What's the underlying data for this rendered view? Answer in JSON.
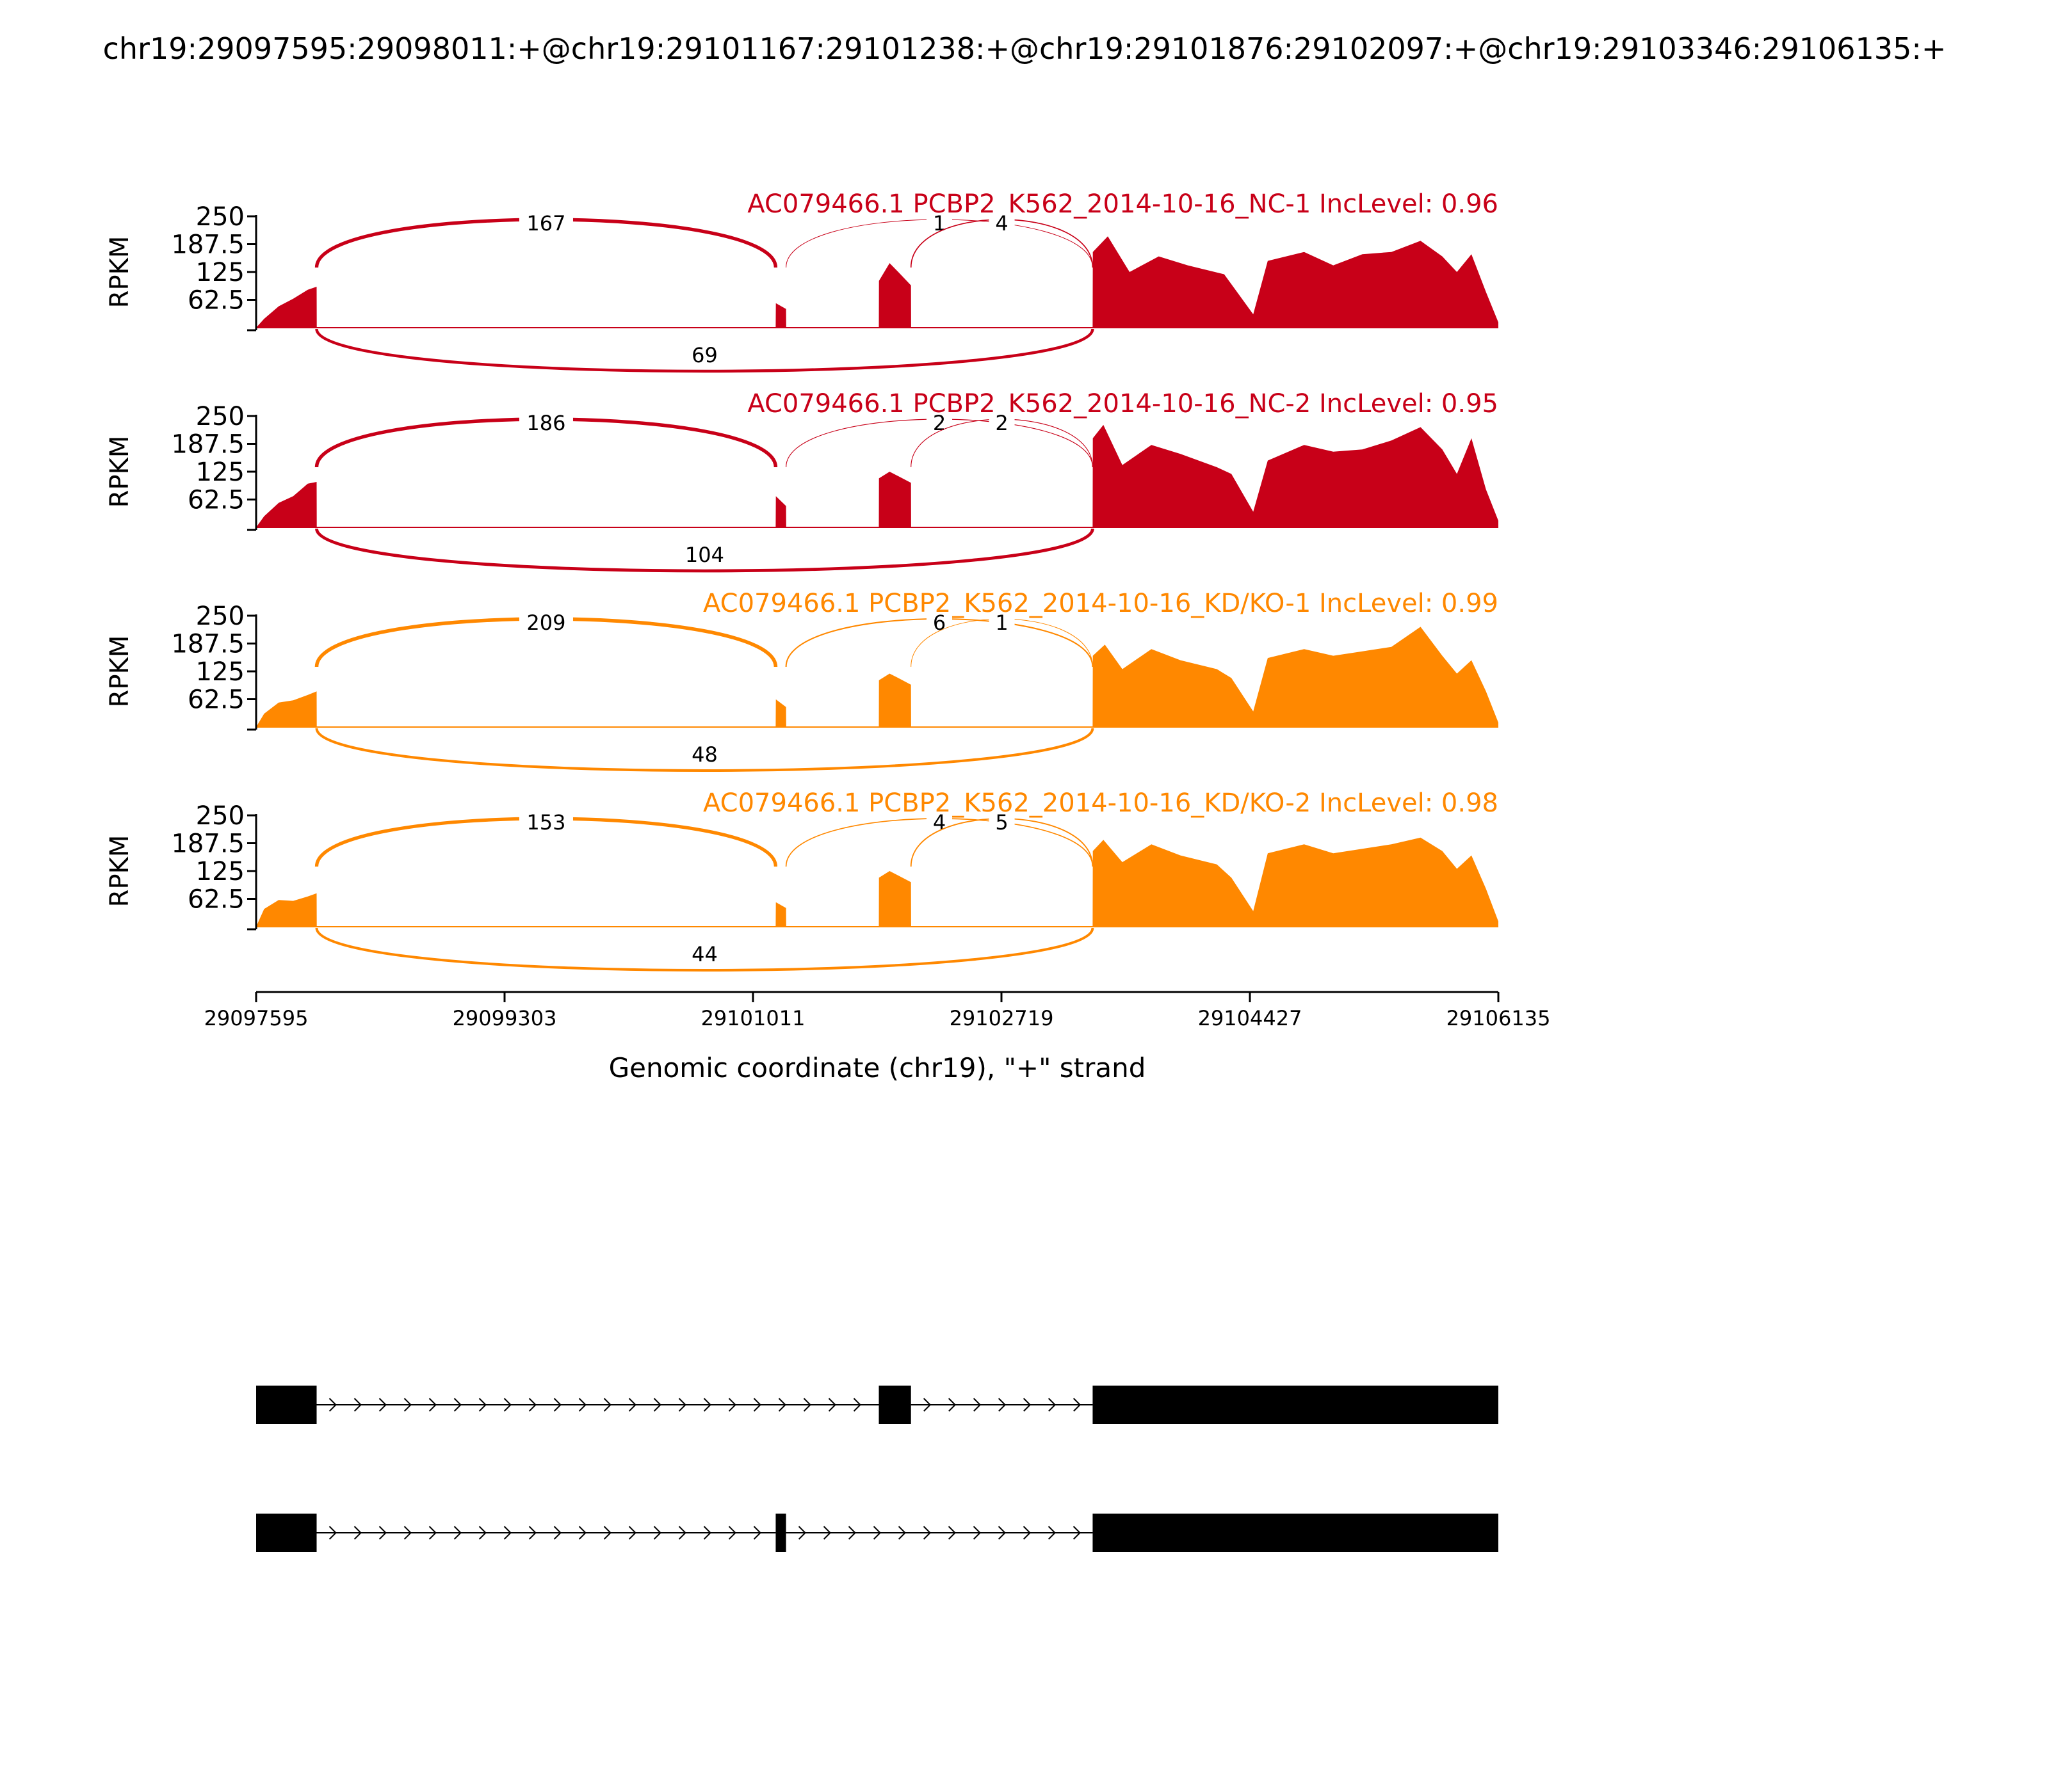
{
  "chart_data": {
    "type": "sashimi",
    "title": "chr19:29097595:29098011:+@chr19:29101167:29101238:+@chr19:29101876:29102097:+@chr19:29103346:29106135:+",
    "xlabel": "Genomic coordinate (chr19), \"+\" strand",
    "ylabel": "RPKM",
    "xlim": [
      29097595,
      29106135
    ],
    "xticks": [
      29097595,
      29099303,
      29101011,
      29102719,
      29104427,
      29106135
    ],
    "xtick_labels": [
      "29097595",
      "29099303",
      "29101011",
      "29102719",
      "29104427",
      "29106135"
    ],
    "ylim": [
      0,
      250
    ],
    "yticks": [
      62.5,
      125,
      187.5,
      250
    ],
    "ytick_labels": [
      "62.5",
      "125",
      "187.5",
      "250"
    ],
    "exons": [
      {
        "start": 29097595,
        "end": 29098011
      },
      {
        "start": 29101167,
        "end": 29101238
      },
      {
        "start": 29101876,
        "end": 29102097
      },
      {
        "start": 29103346,
        "end": 29106135
      }
    ],
    "tracks": [
      {
        "label": "AC079466.1 PCBP2_K562_2014-10-16_NC-1 IncLevel: 0.96",
        "color": "#c80018",
        "coverage": [
          [
            29097595,
            0
          ],
          [
            29097650,
            20
          ],
          [
            29097750,
            48
          ],
          [
            29097850,
            65
          ],
          [
            29097950,
            85
          ],
          [
            29098011,
            92
          ],
          [
            29098012,
            0
          ],
          [
            29101167,
            0
          ],
          [
            29101168,
            55
          ],
          [
            29101238,
            42
          ],
          [
            29101239,
            0
          ],
          [
            29101876,
            0
          ],
          [
            29101877,
            105
          ],
          [
            29101950,
            145
          ],
          [
            29102010,
            125
          ],
          [
            29102097,
            95
          ],
          [
            29102098,
            0
          ],
          [
            29103346,
            0
          ],
          [
            29103347,
            170
          ],
          [
            29103450,
            205
          ],
          [
            29103600,
            125
          ],
          [
            29103800,
            160
          ],
          [
            29104000,
            140
          ],
          [
            29104250,
            120
          ],
          [
            29104350,
            75
          ],
          [
            29104450,
            30
          ],
          [
            29104550,
            150
          ],
          [
            29104800,
            170
          ],
          [
            29105000,
            140
          ],
          [
            29105200,
            165
          ],
          [
            29105400,
            170
          ],
          [
            29105600,
            195
          ],
          [
            29105750,
            160
          ],
          [
            29105850,
            125
          ],
          [
            29105950,
            165
          ],
          [
            29106050,
            80
          ],
          [
            29106135,
            12
          ]
        ],
        "junctions": [
          {
            "start": 29098011,
            "end": 29101167,
            "count": 167,
            "label": "167",
            "side": "top"
          },
          {
            "start": 29101238,
            "end": 29103346,
            "count": 1,
            "label": "1",
            "side": "top"
          },
          {
            "start": 29102097,
            "end": 29103346,
            "count": 4,
            "label": "4",
            "side": "top"
          },
          {
            "start": 29098011,
            "end": 29103346,
            "count": 69,
            "label": "69",
            "side": "bottom"
          }
        ]
      },
      {
        "label": "AC079466.1 PCBP2_K562_2014-10-16_NC-2 IncLevel: 0.95",
        "color": "#c80018",
        "coverage": [
          [
            29097595,
            0
          ],
          [
            29097650,
            25
          ],
          [
            29097750,
            55
          ],
          [
            29097850,
            70
          ],
          [
            29097950,
            98
          ],
          [
            29098011,
            102
          ],
          [
            29098012,
            0
          ],
          [
            29101167,
            0
          ],
          [
            29101168,
            70
          ],
          [
            29101238,
            48
          ],
          [
            29101239,
            0
          ],
          [
            29101876,
            0
          ],
          [
            29101877,
            110
          ],
          [
            29101950,
            125
          ],
          [
            29102010,
            115
          ],
          [
            29102097,
            100
          ],
          [
            29102098,
            0
          ],
          [
            29103346,
            0
          ],
          [
            29103347,
            200
          ],
          [
            29103420,
            230
          ],
          [
            29103550,
            140
          ],
          [
            29103750,
            185
          ],
          [
            29103950,
            165
          ],
          [
            29104200,
            135
          ],
          [
            29104300,
            120
          ],
          [
            29104450,
            35
          ],
          [
            29104550,
            150
          ],
          [
            29104800,
            185
          ],
          [
            29105000,
            170
          ],
          [
            29105200,
            175
          ],
          [
            29105400,
            195
          ],
          [
            29105600,
            225
          ],
          [
            29105750,
            175
          ],
          [
            29105850,
            120
          ],
          [
            29105950,
            200
          ],
          [
            29106050,
            85
          ],
          [
            29106135,
            15
          ]
        ],
        "junctions": [
          {
            "start": 29098011,
            "end": 29101167,
            "count": 186,
            "label": "186",
            "side": "top"
          },
          {
            "start": 29101238,
            "end": 29103346,
            "count": 2,
            "label": "2",
            "side": "top"
          },
          {
            "start": 29102097,
            "end": 29103346,
            "count": 2,
            "label": "2",
            "side": "top"
          },
          {
            "start": 29098011,
            "end": 29103346,
            "count": 104,
            "label": "104",
            "side": "bottom"
          }
        ]
      },
      {
        "label": "AC079466.1 PCBP2_K562_2014-10-16_KD/KO-1 IncLevel: 0.99",
        "color": "#ff8800",
        "coverage": [
          [
            29097595,
            0
          ],
          [
            29097650,
            30
          ],
          [
            29097750,
            55
          ],
          [
            29097850,
            60
          ],
          [
            29097950,
            72
          ],
          [
            29098011,
            80
          ],
          [
            29098012,
            0
          ],
          [
            29101167,
            0
          ],
          [
            29101168,
            62
          ],
          [
            29101238,
            45
          ],
          [
            29101239,
            0
          ],
          [
            29101876,
            0
          ],
          [
            29101877,
            105
          ],
          [
            29101950,
            120
          ],
          [
            29102010,
            110
          ],
          [
            29102097,
            95
          ],
          [
            29102098,
            0
          ],
          [
            29103346,
            0
          ],
          [
            29103347,
            160
          ],
          [
            29103430,
            185
          ],
          [
            29103550,
            130
          ],
          [
            29103750,
            175
          ],
          [
            29103950,
            150
          ],
          [
            29104200,
            130
          ],
          [
            29104300,
            110
          ],
          [
            29104450,
            35
          ],
          [
            29104550,
            155
          ],
          [
            29104800,
            175
          ],
          [
            29105000,
            160
          ],
          [
            29105200,
            170
          ],
          [
            29105400,
            180
          ],
          [
            29105600,
            225
          ],
          [
            29105750,
            160
          ],
          [
            29105850,
            120
          ],
          [
            29105950,
            150
          ],
          [
            29106050,
            80
          ],
          [
            29106135,
            10
          ]
        ],
        "junctions": [
          {
            "start": 29098011,
            "end": 29101167,
            "count": 209,
            "label": "209",
            "side": "top"
          },
          {
            "start": 29101238,
            "end": 29103346,
            "count": 6,
            "label": "6",
            "side": "top"
          },
          {
            "start": 29102097,
            "end": 29103346,
            "count": 1,
            "label": "1",
            "side": "top"
          },
          {
            "start": 29098011,
            "end": 29103346,
            "count": 48,
            "label": "48",
            "side": "bottom"
          }
        ]
      },
      {
        "label": "AC079466.1 PCBP2_K562_2014-10-16_KD/KO-2 IncLevel: 0.98",
        "color": "#ff8800",
        "coverage": [
          [
            29097595,
            0
          ],
          [
            29097650,
            40
          ],
          [
            29097750,
            60
          ],
          [
            29097850,
            58
          ],
          [
            29097950,
            68
          ],
          [
            29098011,
            75
          ],
          [
            29098012,
            0
          ],
          [
            29101167,
            0
          ],
          [
            29101168,
            55
          ],
          [
            29101238,
            42
          ],
          [
            29101239,
            0
          ],
          [
            29101876,
            0
          ],
          [
            29101877,
            110
          ],
          [
            29101950,
            125
          ],
          [
            29102010,
            115
          ],
          [
            29102097,
            100
          ],
          [
            29102098,
            0
          ],
          [
            29103346,
            0
          ],
          [
            29103347,
            170
          ],
          [
            29103420,
            195
          ],
          [
            29103550,
            145
          ],
          [
            29103750,
            185
          ],
          [
            29103950,
            160
          ],
          [
            29104200,
            140
          ],
          [
            29104300,
            110
          ],
          [
            29104450,
            35
          ],
          [
            29104550,
            165
          ],
          [
            29104800,
            185
          ],
          [
            29105000,
            165
          ],
          [
            29105200,
            175
          ],
          [
            29105400,
            185
          ],
          [
            29105600,
            200
          ],
          [
            29105750,
            170
          ],
          [
            29105850,
            130
          ],
          [
            29105950,
            160
          ],
          [
            29106050,
            85
          ],
          [
            29106135,
            12
          ]
        ],
        "junctions": [
          {
            "start": 29098011,
            "end": 29101167,
            "count": 153,
            "label": "153",
            "side": "top"
          },
          {
            "start": 29101238,
            "end": 29103346,
            "count": 4,
            "label": "4",
            "side": "top"
          },
          {
            "start": 29102097,
            "end": 29103346,
            "count": 5,
            "label": "5",
            "side": "top"
          },
          {
            "start": 29098011,
            "end": 29103346,
            "count": 44,
            "label": "44",
            "side": "bottom"
          }
        ]
      }
    ],
    "isoforms": [
      {
        "exons": [
          [
            29097595,
            29098011
          ],
          [
            29101876,
            29102097
          ],
          [
            29103346,
            29106135
          ]
        ]
      },
      {
        "exons": [
          [
            29097595,
            29098011
          ],
          [
            29101167,
            29101238
          ],
          [
            29103346,
            29106135
          ]
        ]
      }
    ]
  }
}
